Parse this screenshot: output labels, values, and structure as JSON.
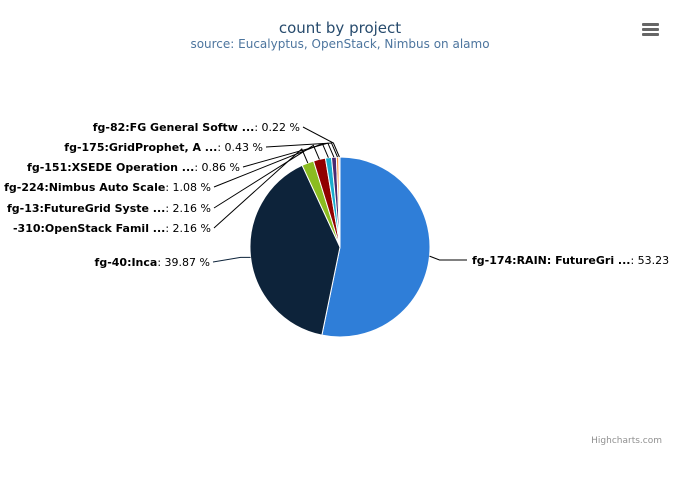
{
  "chart_data": {
    "type": "pie",
    "title": "count by project",
    "subtitle": "source: Eucalyptus, OpenStack, Nimbus on alamo",
    "slices": [
      {
        "label": "fg-174:RAIN: FutureGri ...",
        "value": 53.23,
        "value_text": "53.23",
        "color": "#2f7ed8"
      },
      {
        "label": "fg-40:Inca",
        "value": 39.87,
        "value_text": "39.87 %",
        "color": "#0d233a"
      },
      {
        "label": "-310:OpenStack Famil ...",
        "value": 2.16,
        "value_text": "2.16 %",
        "color": "#8bbc21"
      },
      {
        "label": "fg-13:FutureGrid Syste ...",
        "value": 2.16,
        "value_text": "2.16 %",
        "color": "#910000"
      },
      {
        "label": "fg-224:Nimbus Auto Scale",
        "value": 1.08,
        "value_text": "1.08 %",
        "color": "#1aadce"
      },
      {
        "label": "fg-151:XSEDE Operation ...",
        "value": 0.86,
        "value_text": "0.86 %",
        "color": "#492970"
      },
      {
        "label": "fg-175:GridProphet, A ...",
        "value": 0.43,
        "value_text": "0.43 %",
        "color": "#f28f43"
      },
      {
        "label": "fg-82:FG General Softw ...",
        "value": 0.22,
        "value_text": "0.22 %",
        "color": "#77a1e5"
      }
    ]
  },
  "credits": "Highcharts.com",
  "menu_icon": "hamburger-menu-icon"
}
